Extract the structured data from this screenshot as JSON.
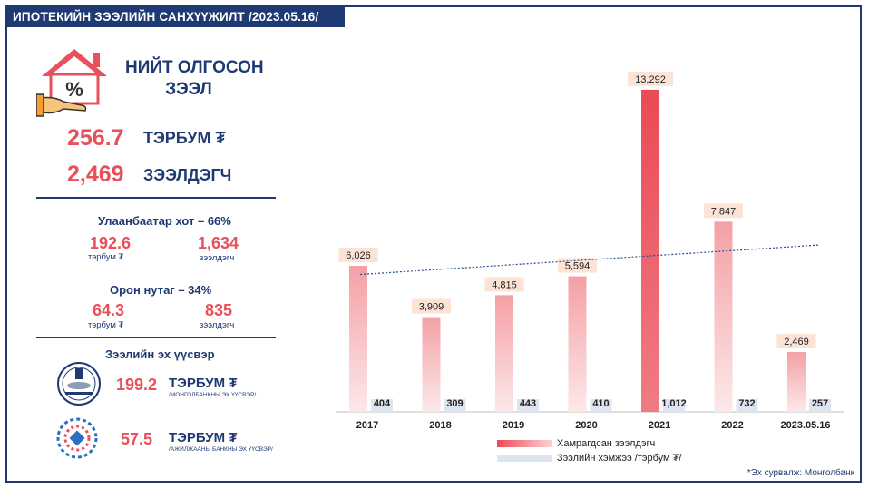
{
  "header": {
    "title": "ИПОТЕКИЙН ЗЭЭЛИЙН САНХҮҮЖИЛТ /2023.05.16/"
  },
  "total": {
    "title_line1": "НИЙТ ОЛГОСОН",
    "title_line2": "ЗЭЭЛ",
    "amount_value": "256.7",
    "amount_unit": "ТЭРБУМ ₮",
    "borrowers_value": "2,469",
    "borrowers_unit": "ЗЭЭЛДЭГЧ"
  },
  "ulaanbaatar": {
    "heading": "Улаанбаатар хот – 66%",
    "amount_value": "192.6",
    "amount_caption": "тэрбум ₮",
    "borrowers_value": "1,634",
    "borrowers_caption": "зээлдэгч"
  },
  "countryside": {
    "heading": "Орон нутаг – 34%",
    "amount_value": "64.3",
    "amount_caption": "тэрбум ₮",
    "borrowers_value": "835",
    "borrowers_caption": "зээлдэгч"
  },
  "sources": {
    "heading": "Зээлийн эх үүсвэр",
    "items": [
      {
        "value": "199.2",
        "unit": "ТЭРБУМ ₮",
        "note": "/МОНГОЛБАНКНЫ ЭХ ҮҮСВЭР/",
        "icon": "mongolbank-logo-icon"
      },
      {
        "value": "57.5",
        "unit": "ТЭРБУМ ₮",
        "note": "/АЖИЛЖААНЫ БАНКНЫ ЭХ ҮҮСВЭР/",
        "icon": "commercial-bank-logo-icon"
      }
    ]
  },
  "chart_data": {
    "type": "bar",
    "categories": [
      "2017",
      "2018",
      "2019",
      "2020",
      "2021",
      "2022",
      "2023.05.16"
    ],
    "series": [
      {
        "name": "Хамрагдсан зээлдэгч",
        "values": [
          6026,
          3909,
          4815,
          5594,
          13292,
          7847,
          2469
        ],
        "labels": [
          "6,026",
          "3,909",
          "4,815",
          "5,594",
          "13,292",
          "7,847",
          "2,469"
        ]
      },
      {
        "name": "Зээлийн хэмжээ /тэрбум ₮/",
        "values": [
          404,
          309,
          443,
          410,
          1012,
          732,
          257
        ],
        "labels": [
          "404",
          "309",
          "443",
          "410",
          "1,012",
          "732",
          "257"
        ]
      }
    ],
    "highlight_category": "2021",
    "trendline": true,
    "ylim": [
      0,
      14000
    ],
    "legend_position": "bottom-center",
    "colors": {
      "borrowers": "#f4a0a5",
      "borrowers_highlight": "#ea4a55",
      "amount": "#dde5f1",
      "trend": "#2a4d8f"
    }
  },
  "source_note": "*Эх сурвалж: Монголбанк"
}
